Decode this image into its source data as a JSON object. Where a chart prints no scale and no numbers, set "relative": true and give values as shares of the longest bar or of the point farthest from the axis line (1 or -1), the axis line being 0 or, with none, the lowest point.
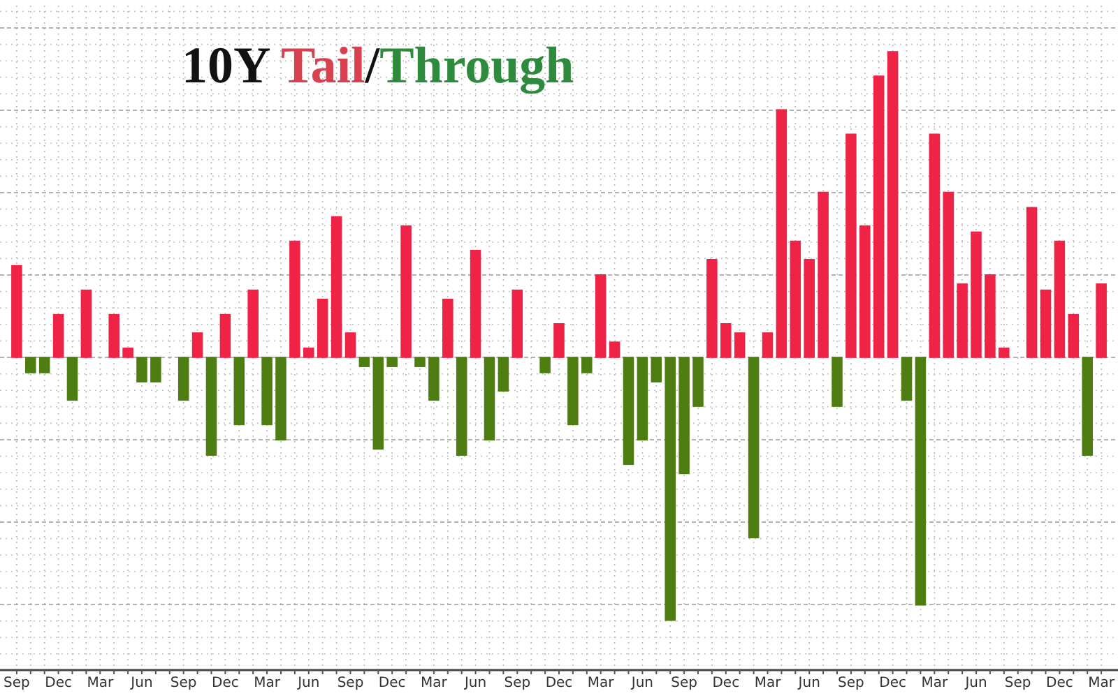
{
  "chart_data": {
    "type": "bar",
    "title": "10Y Tail/Through",
    "relative": true,
    "grid": true,
    "categories": [
      "Sep",
      null,
      null,
      "Dec",
      null,
      null,
      "Mar",
      null,
      null,
      "Jun",
      null,
      null,
      "Sep",
      null,
      null,
      "Dec",
      null,
      null,
      "Mar",
      null,
      null,
      "Jun",
      null,
      null,
      "Sep",
      null,
      null,
      "Dec",
      null,
      null,
      "Mar",
      null,
      null,
      "Jun",
      null,
      null,
      "Sep",
      null,
      null,
      "Dec",
      null,
      null,
      "Mar",
      null,
      null,
      "Jun",
      null,
      null,
      "Sep",
      null,
      null,
      "Dec",
      null,
      null,
      "Mar",
      null,
      null,
      "Jun",
      null,
      null,
      "Sep",
      null,
      null,
      "Dec",
      null,
      null,
      "Mar",
      null,
      null,
      "Jun",
      null,
      null,
      "Sep",
      null,
      null,
      "Dec",
      null,
      null,
      "Mar"
    ],
    "values": [
      0.3,
      -0.05,
      -0.05,
      0.14,
      -0.14,
      0.22,
      0,
      0.14,
      0.03,
      -0.08,
      -0.08,
      0,
      -0.14,
      0.08,
      -0.32,
      0.14,
      -0.22,
      0.22,
      -0.22,
      -0.27,
      0.38,
      0.03,
      0.19,
      0.46,
      0.08,
      -0.03,
      -0.3,
      -0.03,
      0.43,
      -0.03,
      -0.14,
      0.19,
      -0.32,
      0.35,
      -0.27,
      -0.11,
      0.22,
      0,
      -0.05,
      0.11,
      -0.22,
      -0.05,
      0.27,
      0.05,
      -0.35,
      -0.27,
      -0.08,
      -0.86,
      -0.38,
      -0.16,
      0.32,
      0.11,
      0.08,
      -0.59,
      0.08,
      0.81,
      0.38,
      0.32,
      0.54,
      -0.16,
      0.73,
      0.43,
      0.92,
      1,
      -0.14,
      -0.81,
      0.73,
      0.54,
      0.24,
      0.41,
      0.27,
      0.03,
      0,
      0.49,
      0.22,
      0.38,
      0.14,
      -0.32,
      0.24
    ],
    "colors": [
      "#ee2346",
      "#4e7d12",
      "#4e7d12",
      "#ee2346",
      "#4e7d12",
      "#ee2346",
      "#bbbbbb",
      "#ee2346",
      "#ee2346",
      "#4e7d12",
      "#4e7d12",
      "#bbbbbb",
      "#4e7d12",
      "#ee2346",
      "#4e7d12",
      "#ee2346",
      "#4e7d12",
      "#ee2346",
      "#4e7d12",
      "#4e7d12",
      "#ee2346",
      "#ee2346",
      "#ee2346",
      "#ee2346",
      "#ee2346",
      "#4e7d12",
      "#4e7d12",
      "#4e7d12",
      "#ee2346",
      "#4e7d12",
      "#4e7d12",
      "#ee2346",
      "#4e7d12",
      "#ee2346",
      "#4e7d12",
      "#4e7d12",
      "#ee2346",
      "#bbbbbb",
      "#4e7d12",
      "#ee2346",
      "#4e7d12",
      "#4e7d12",
      "#ee2346",
      "#ee2346",
      "#4e7d12",
      "#4e7d12",
      "#4e7d12",
      "#4e7d12",
      "#4e7d12",
      "#4e7d12",
      "#ee2346",
      "#ee2346",
      "#ee2346",
      "#4e7d12",
      "#ee2346",
      "#ee2346",
      "#ee2346",
      "#ee2346",
      "#ee2346",
      "#4e7d12",
      "#ee2346",
      "#ee2346",
      "#ee2346",
      "#ee2346",
      "#4e7d12",
      "#4e7d12",
      "#ee2346",
      "#ee2346",
      "#ee2346",
      "#ee2346",
      "#ee2346",
      "#ee2346",
      "#bbbbbb",
      "#ee2346",
      "#ee2346",
      "#ee2346",
      "#ee2346",
      "#4e7d12",
      "#ee2346"
    ]
  }
}
